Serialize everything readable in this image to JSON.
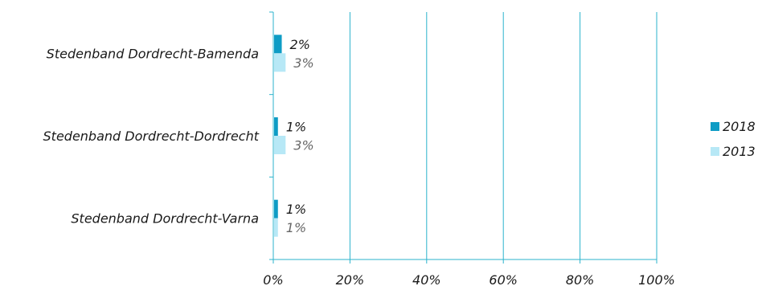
{
  "chart_data": {
    "type": "bar",
    "orientation": "horizontal",
    "categories": [
      "Stedenband Dordrecht-Bamenda",
      "Stedenband Dordrecht-Dordrecht",
      "Stedenband Dordrecht-Varna"
    ],
    "series": [
      {
        "name": "2018",
        "values": [
          0.02,
          0.01,
          0.01
        ],
        "labels": [
          "2%",
          "1%",
          "1%"
        ],
        "color": "#0e9cc5"
      },
      {
        "name": "2013",
        "values": [
          0.03,
          0.03,
          0.01
        ],
        "labels": [
          "3%",
          "3%",
          "1%"
        ],
        "color": "#b7e8f6"
      }
    ],
    "xlim": [
      0,
      1
    ],
    "xticks": [
      0,
      0.2,
      0.4,
      0.6,
      0.8,
      1.0
    ],
    "xtick_labels": [
      "0%",
      "20%",
      "40%",
      "60%",
      "80%",
      "100%"
    ],
    "grid": true,
    "grid_color": "#2bb3cc",
    "legend_position": "right",
    "title": "",
    "xlabel": "",
    "ylabel": ""
  }
}
